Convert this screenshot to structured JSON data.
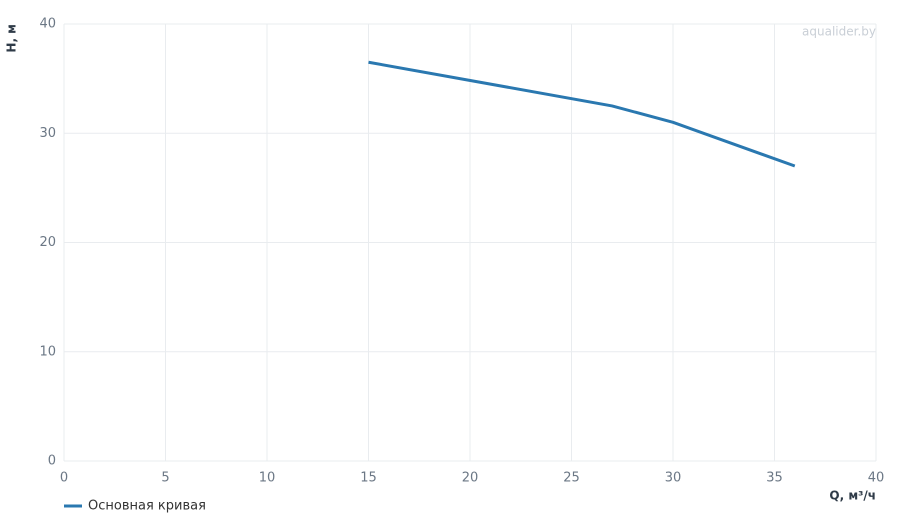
{
  "chart_data": {
    "type": "line",
    "watermark": "aqualider.by",
    "x_label": "Q, м³/ч",
    "y_label": "H, м",
    "xlim": [
      0,
      40
    ],
    "xticks": [
      0,
      5,
      10,
      15,
      20,
      25,
      30,
      35,
      40
    ],
    "ylim": [
      0,
      40
    ],
    "yticks": [
      0,
      10,
      20,
      30,
      40
    ],
    "grid": true,
    "legend": "bottom-left",
    "series": [
      {
        "name": "Основная кривая",
        "color": "#2a78b0",
        "x": [
          15,
          27,
          30,
          36
        ],
        "values": [
          36.5,
          32.5,
          31,
          27
        ]
      }
    ]
  }
}
